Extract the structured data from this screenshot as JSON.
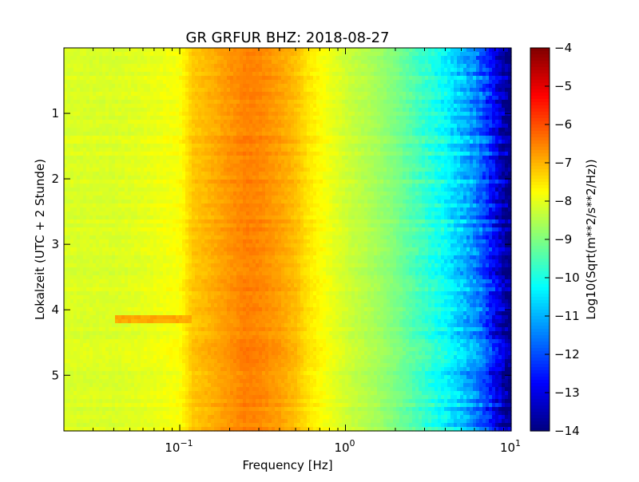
{
  "chart_data": {
    "type": "heatmap",
    "title": "GR GRFUR BHZ: 2018-08-27",
    "xlabel": "Frequency [Hz]",
    "ylabel": "Lokalzeit (UTC + 2 Stunde)",
    "x_scale": "log",
    "xlim": [
      0.02,
      10
    ],
    "ylim": [
      5.85,
      0
    ],
    "x_ticks": [
      {
        "value": 0.1,
        "base": "10",
        "exp": "−1"
      },
      {
        "value": 1,
        "base": "10",
        "exp": "0"
      },
      {
        "value": 10,
        "base": "10",
        "exp": "1"
      }
    ],
    "y_ticks": [
      {
        "value": 1,
        "label": "1"
      },
      {
        "value": 2,
        "label": "2"
      },
      {
        "value": 3,
        "label": "3"
      },
      {
        "value": 4,
        "label": "4"
      },
      {
        "value": 5,
        "label": "5"
      }
    ],
    "grid": false,
    "colormap": "jet",
    "colorbar": {
      "label": "Log10(Sqrt(m**2/s**2/Hz))",
      "range": [
        -14,
        -4
      ],
      "ticks": [
        "−4",
        "−5",
        "−6",
        "−7",
        "−8",
        "−9",
        "−10",
        "−11",
        "−12",
        "−13",
        "−14"
      ]
    },
    "spectrum_profile": {
      "frequency_hz": [
        0.02,
        0.04,
        0.06,
        0.1,
        0.12,
        0.15,
        0.2,
        0.25,
        0.3,
        0.4,
        0.5,
        0.6,
        0.8,
        1.0,
        1.5,
        2.0,
        3.0,
        4.0,
        5.0,
        6.0,
        7.0,
        8.0,
        9.0,
        10.0
      ],
      "log10_amplitude": [
        -8.1,
        -8.1,
        -8.0,
        -7.8,
        -7.2,
        -7.0,
        -6.7,
        -6.5,
        -6.55,
        -6.8,
        -7.1,
        -7.5,
        -7.9,
        -8.2,
        -8.6,
        -9.0,
        -9.7,
        -10.2,
        -10.8,
        -11.3,
        -12.0,
        -12.8,
        -13.5,
        -14.0
      ]
    },
    "annotations": [
      {
        "text": "",
        "note": "horizontal band near 4.15 h from 0.04 to 0.12 Hz, value about -6.8"
      }
    ]
  }
}
